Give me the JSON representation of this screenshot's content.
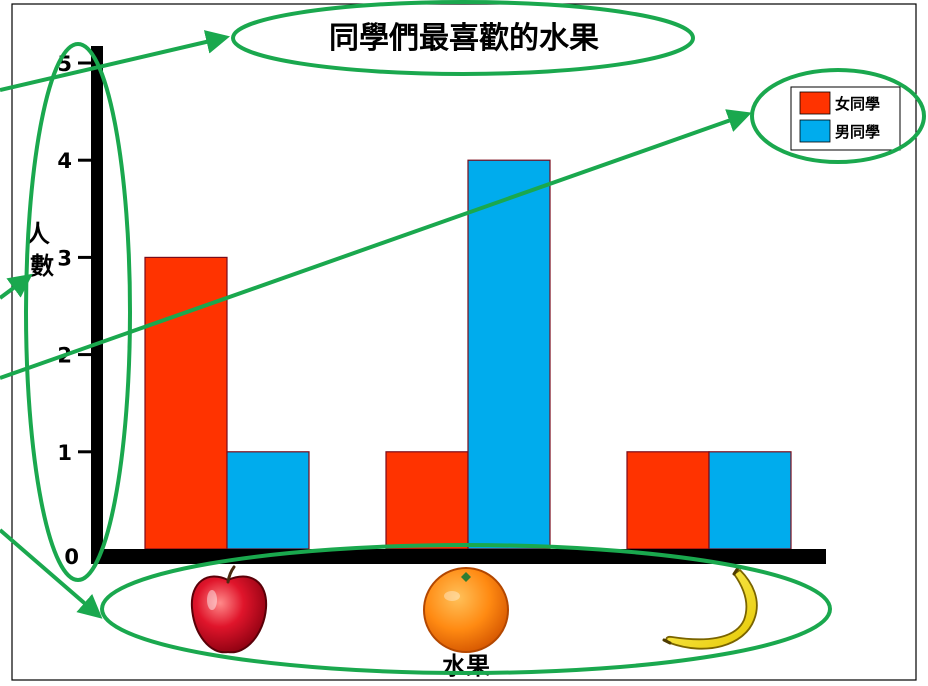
{
  "chart_data": {
    "type": "bar",
    "title": "同學們最喜歡的水果",
    "xlabel": "水果",
    "ylabel": "人數",
    "ylim": [
      0,
      5
    ],
    "yticks": [
      0,
      1,
      2,
      3,
      4,
      5
    ],
    "categories": [
      "apple",
      "orange",
      "banana"
    ],
    "category_icons": [
      "apple-icon",
      "orange-icon",
      "banana-icon"
    ],
    "series": [
      {
        "name": "女同學",
        "color": "#ff3300",
        "values": [
          3,
          1,
          1
        ]
      },
      {
        "name": "男同學",
        "color": "#00aced",
        "values": [
          1,
          4,
          1
        ]
      }
    ],
    "legend_position": "top-right",
    "grid": false,
    "annotation_color": "#1aa84e"
  }
}
